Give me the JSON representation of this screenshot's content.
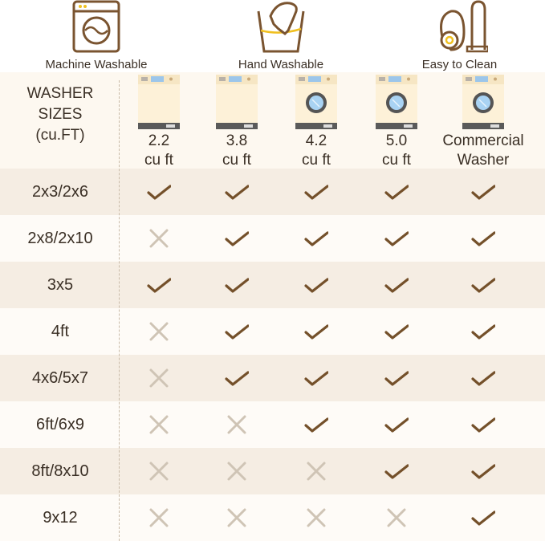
{
  "features": [
    {
      "label": "Machine Washable",
      "icon": "washing-machine-icon"
    },
    {
      "label": "Hand Washable",
      "icon": "hand-wash-icon"
    },
    {
      "label": "Easy to Clean",
      "icon": "vacuum-cleaner-icon"
    }
  ],
  "table": {
    "corner_label": [
      "WASHER",
      "SIZES",
      "(cu.FT)"
    ],
    "columns": [
      {
        "line1": "2.2",
        "line2": "cu ft",
        "icon": "top-load-washer-icon"
      },
      {
        "line1": "3.8",
        "line2": "cu ft",
        "icon": "top-load-washer-icon"
      },
      {
        "line1": "4.2",
        "line2": "cu ft",
        "icon": "front-load-washer-icon"
      },
      {
        "line1": "5.0",
        "line2": "cu ft",
        "icon": "front-load-washer-icon"
      },
      {
        "line1": "Commercial",
        "line2": "Washer",
        "icon": "front-load-washer-icon"
      }
    ],
    "rows": [
      {
        "size": "2x3/2x6",
        "fits": [
          true,
          true,
          true,
          true,
          true
        ]
      },
      {
        "size": "2x8/2x10",
        "fits": [
          false,
          true,
          true,
          true,
          true
        ]
      },
      {
        "size": "3x5",
        "fits": [
          true,
          true,
          true,
          true,
          true
        ]
      },
      {
        "size": "4ft",
        "fits": [
          false,
          true,
          true,
          true,
          true
        ]
      },
      {
        "size": "4x6/5x7",
        "fits": [
          false,
          true,
          true,
          true,
          true
        ]
      },
      {
        "size": "6ft/6x9",
        "fits": [
          false,
          false,
          true,
          true,
          true
        ]
      },
      {
        "size": "8ft/8x10",
        "fits": [
          false,
          false,
          false,
          true,
          true
        ]
      },
      {
        "size": "9x12",
        "fits": [
          false,
          false,
          false,
          false,
          true
        ]
      }
    ]
  },
  "colors": {
    "check": "#74502a",
    "cross": "#cfc4b5",
    "icon": "#7a5430",
    "accent": "#f0c020",
    "row_alt": "#f5ede3",
    "row": "#fefbf7"
  }
}
